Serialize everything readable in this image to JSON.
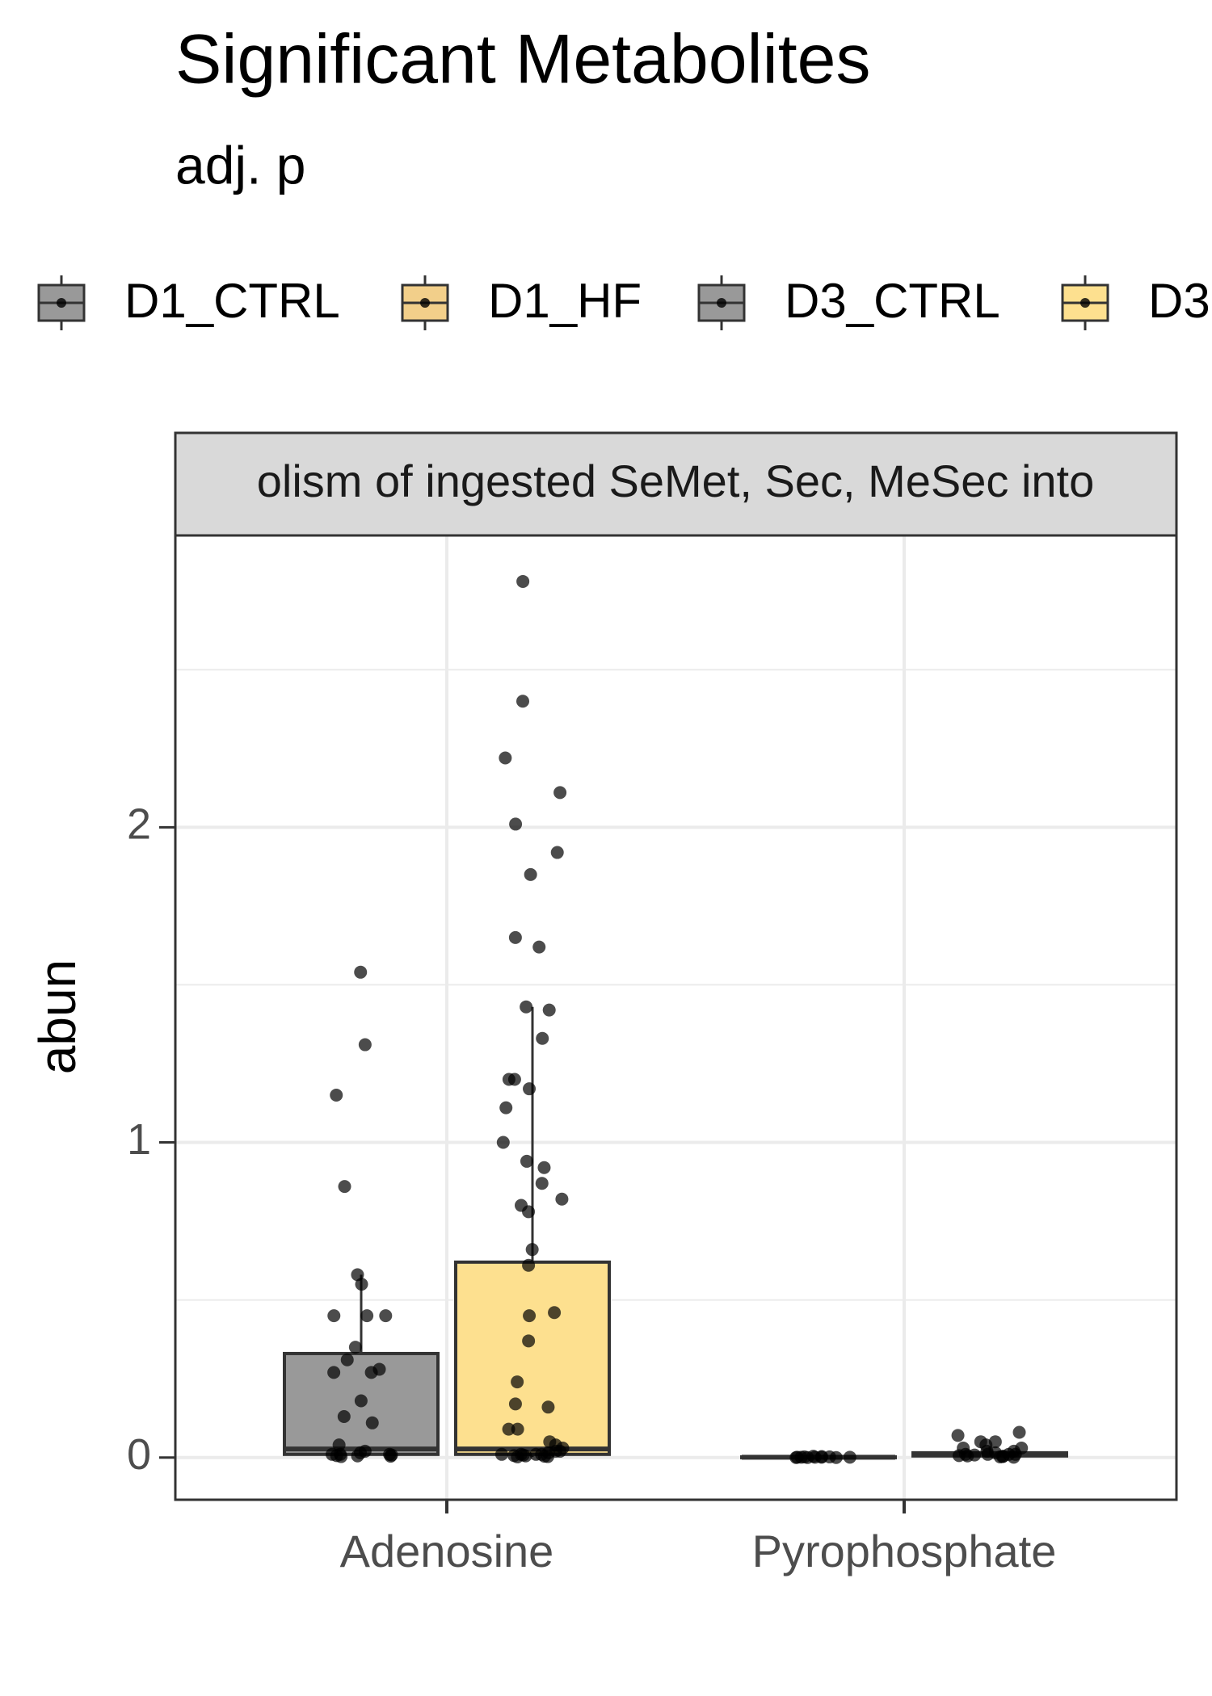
{
  "chart_data": {
    "type": "boxplot",
    "title": "Significant Metabolites",
    "subtitle": "adj. p",
    "y_label": "abun",
    "facet_label": "olism of ingested SeMet, Sec, MeSec into",
    "categories": [
      "Adenosine",
      "Pyrophosphate"
    ],
    "ylim": [
      -0.134,
      2.926
    ],
    "yticks": [
      0,
      1,
      2
    ],
    "minor_yticks": [
      0.5,
      1.5,
      2.5
    ],
    "grid": true,
    "legend_position": "top",
    "series": [
      {
        "name": "D1_CTRL",
        "color": "#999999",
        "boxes": [
          {
            "low": 0.003,
            "q1": 0.01,
            "median": 0.027,
            "q3": 0.33,
            "high": 0.58
          },
          {
            "low": 0,
            "q1": 0,
            "median": 0.001,
            "q3": 0.002,
            "high": 0.004
          }
        ],
        "points": [
          [
            1.54,
            1.31,
            1.15,
            0.86,
            0.58,
            0.55,
            0.45,
            0.45,
            0.45,
            0.35,
            0.31,
            0.28,
            0.27,
            0.27,
            0.18,
            0.13,
            0.11,
            0.04,
            0.02,
            0.015,
            0.01,
            0.01,
            0.01,
            0.008,
            0.006,
            0.005,
            0.004,
            0.003
          ],
          [
            0.004,
            0.003,
            0.002,
            0.002,
            0.001,
            0.001,
            0.001,
            0.001,
            0.001,
            0,
            0,
            0
          ]
        ]
      },
      {
        "name": "D1_HF",
        "color": "#f2cf8a",
        "boxes": [
          null,
          null
        ],
        "points": [
          [],
          []
        ]
      },
      {
        "name": "D3_CTRL",
        "color": "#999999",
        "boxes": [
          null,
          null
        ],
        "points": [
          [],
          []
        ]
      },
      {
        "name": "D3",
        "color": "#fde08f",
        "boxes": [
          {
            "low": 0.002,
            "q1": 0.01,
            "median": 0.027,
            "q3": 0.62,
            "high": 1.43
          },
          {
            "low": 0,
            "q1": 0.005,
            "median": 0.01,
            "q3": 0.015,
            "high": 0.035
          }
        ],
        "points": [
          [
            2.78,
            2.4,
            2.22,
            2.11,
            2.01,
            1.92,
            1.85,
            1.65,
            1.62,
            1.43,
            1.42,
            1.33,
            1.2,
            1.2,
            1.17,
            1.11,
            1.0,
            0.94,
            0.92,
            0.87,
            0.82,
            0.8,
            0.78,
            0.66,
            0.61,
            0.46,
            0.45,
            0.37,
            0.24,
            0.17,
            0.16,
            0.09,
            0.09,
            0.05,
            0.04,
            0.03,
            0.02,
            0.02,
            0.015,
            0.01,
            0.01,
            0.01,
            0.01,
            0.008,
            0.006,
            0.005,
            0.004,
            0.003,
            0.002
          ],
          [
            0.08,
            0.07,
            0.05,
            0.05,
            0.04,
            0.03,
            0.03,
            0.02,
            0.02,
            0.015,
            0.01,
            0.01,
            0.01,
            0.01,
            0.008,
            0.006,
            0.005,
            0.004,
            0.003,
            0.002,
            0.001
          ]
        ]
      }
    ]
  }
}
